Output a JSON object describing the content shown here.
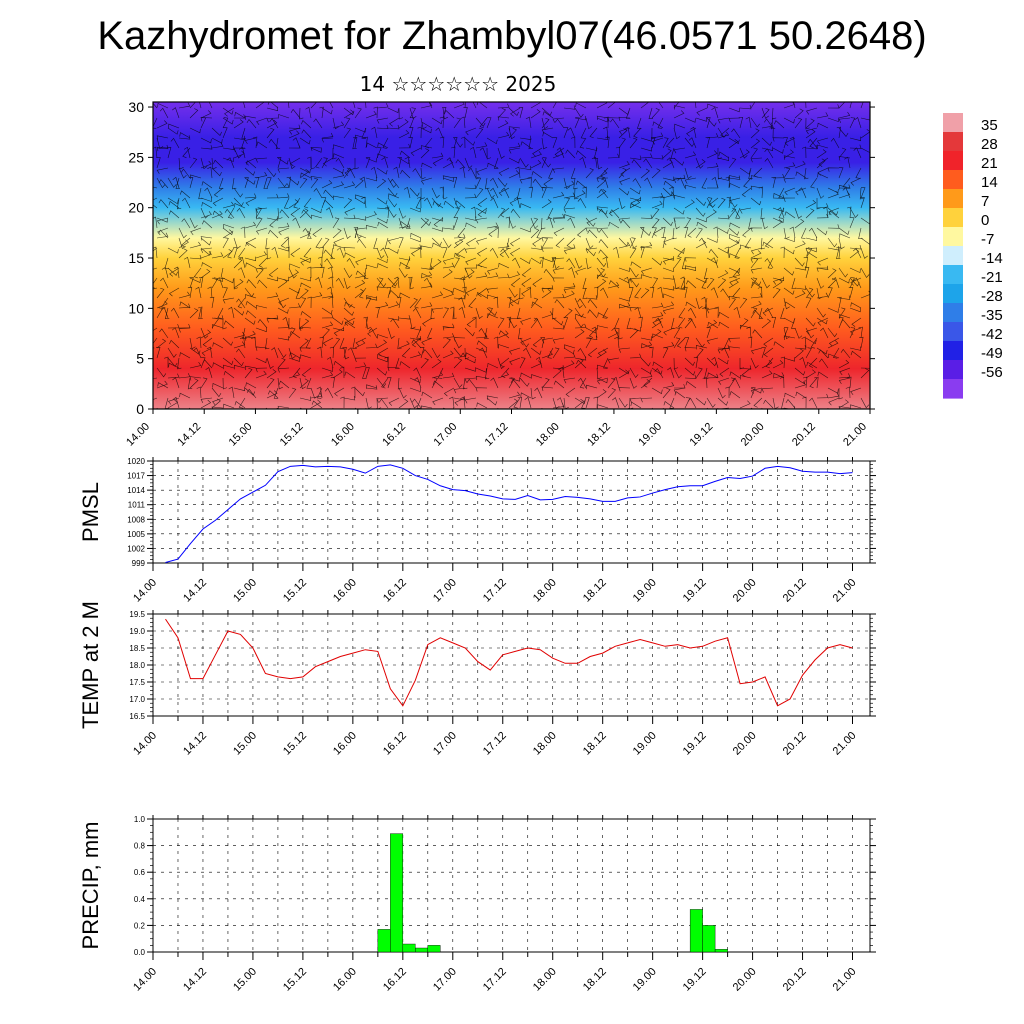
{
  "header": {
    "title": "Kazhydromet for Zhambyl07(46.0571 50.2648)",
    "subtitle": "14 ☆☆☆☆☆☆ 2025"
  },
  "chart_data": [
    {
      "type": "heatmap",
      "panel": "cross-section",
      "x_tick_labels": [
        "14.00",
        "14.12",
        "15.00",
        "15.12",
        "16.00",
        "16.12",
        "17.00",
        "17.12",
        "18.00",
        "18.12",
        "19.00",
        "19.12",
        "20.00",
        "20.12",
        "21.00"
      ],
      "y_tick_labels": [
        "0",
        "5",
        "10",
        "15",
        "20",
        "25",
        "30"
      ],
      "ylim": [
        0,
        30
      ],
      "colorbar_labels": [
        "35",
        "28",
        "21",
        "14",
        "7",
        "0",
        "-7",
        "-14",
        "-21",
        "-28",
        "-35",
        "-42",
        "-49",
        "-56"
      ],
      "colorbar_colors": [
        "#f0a0a8",
        "#e4383a",
        "#f0232a",
        "#ff5c1e",
        "#ff9a1a",
        "#ffd23c",
        "#fff8a0",
        "#cfeefd",
        "#39b9f2",
        "#1da4ea",
        "#2f7ee8",
        "#3a57e8",
        "#2121e6",
        "#5a1ee6",
        "#8a3cf0"
      ],
      "profile": {
        "heights": [
          0,
          4,
          8,
          12,
          15,
          17,
          20,
          22,
          24.5,
          27,
          30.5
        ],
        "temperatures": [
          33,
          22,
          14,
          7,
          0,
          -7,
          -21,
          -35,
          -52,
          -52,
          -60
        ]
      }
    },
    {
      "type": "line",
      "panel": "pmsl",
      "ylabel": "PMSL",
      "color": "#0000ff",
      "x_tick_labels": [
        "14.00",
        "14.12",
        "15.00",
        "15.12",
        "16.00",
        "16.12",
        "17.00",
        "17.12",
        "18.00",
        "18.12",
        "19.00",
        "19.12",
        "20.00",
        "20.12",
        "21.00"
      ],
      "y_tick_labels": [
        "999",
        "1002",
        "1005",
        "1008",
        "1011",
        "1014",
        "1017",
        "1020"
      ],
      "ylim": [
        999,
        1020
      ],
      "x": [
        0,
        3,
        6,
        9,
        12,
        15,
        18,
        21,
        24,
        27,
        30,
        33,
        36,
        39,
        42,
        45,
        48,
        51,
        54,
        57,
        60,
        63,
        66,
        69,
        72,
        75,
        78,
        81,
        84,
        87,
        90,
        93,
        96,
        99,
        102,
        105,
        108,
        111,
        114,
        117,
        120,
        123,
        126,
        129,
        132,
        135,
        138,
        141,
        144,
        147,
        150,
        153,
        156,
        159,
        162,
        165
      ],
      "values": [
        999.1,
        999.8,
        1003,
        1006,
        1007.8,
        1010,
        1012.2,
        1013.6,
        1015,
        1017.8,
        1018.9,
        1019.1,
        1018.8,
        1018.9,
        1018.8,
        1018.3,
        1017.5,
        1018.9,
        1019.2,
        1018.5,
        1017,
        1016.2,
        1014.9,
        1014.1,
        1013.9,
        1013.2,
        1012.8,
        1012.2,
        1012.1,
        1012.9,
        1012,
        1012.1,
        1012.7,
        1012.5,
        1012.2,
        1011.7,
        1011.7,
        1012.4,
        1012.6,
        1013.4,
        1014.1,
        1014.7,
        1014.9,
        1014.9,
        1015.8,
        1016.6,
        1016.4,
        1016.9,
        1018.5,
        1018.9,
        1018.6,
        1017.9,
        1017.7,
        1017.7,
        1017.4,
        1017.6
      ]
    },
    {
      "type": "line",
      "panel": "temp2m",
      "ylabel": "TEMP at 2 M",
      "color": "#e00000",
      "x_tick_labels": [
        "14.00",
        "14.12",
        "15.00",
        "15.12",
        "16.00",
        "16.12",
        "17.00",
        "17.12",
        "18.00",
        "18.12",
        "19.00",
        "19.12",
        "20.00",
        "20.12",
        "21.00"
      ],
      "y_tick_labels": [
        "16.5",
        "17.0",
        "17.5",
        "18.0",
        "18.5",
        "19.0",
        "19.5"
      ],
      "ylim": [
        16.5,
        19.5
      ],
      "x": [
        0,
        3,
        6,
        9,
        12,
        15,
        18,
        21,
        24,
        27,
        30,
        33,
        36,
        39,
        42,
        45,
        48,
        51,
        54,
        57,
        60,
        63,
        66,
        69,
        72,
        75,
        78,
        81,
        84,
        87,
        90,
        93,
        96,
        99,
        102,
        105,
        108,
        111,
        114,
        117,
        120,
        123,
        126,
        129,
        132,
        135,
        138,
        141,
        144,
        147,
        150,
        153,
        156,
        159,
        162,
        165
      ],
      "values": [
        19.35,
        18.8,
        17.6,
        17.6,
        18.3,
        19,
        18.9,
        18.5,
        17.75,
        17.65,
        17.6,
        17.65,
        17.95,
        18.1,
        18.25,
        18.35,
        18.45,
        18.4,
        17.3,
        16.8,
        17.55,
        18.6,
        18.8,
        18.65,
        18.5,
        18.1,
        17.85,
        18.3,
        18.4,
        18.5,
        18.45,
        18.2,
        18.05,
        18.05,
        18.25,
        18.35,
        18.55,
        18.65,
        18.75,
        18.65,
        18.55,
        18.6,
        18.5,
        18.55,
        18.7,
        18.8,
        17.45,
        17.5,
        17.65,
        16.8,
        17,
        17.7,
        18.15,
        18.5,
        18.6,
        18.5
      ],
      "tail_values": [
        18.45
      ]
    },
    {
      "type": "bar",
      "panel": "precip",
      "ylabel": "PRECIP, mm",
      "color": "#00ff00",
      "x_tick_labels": [
        "14.00",
        "14.12",
        "15.00",
        "15.12",
        "16.00",
        "16.12",
        "17.00",
        "17.12",
        "18.00",
        "18.12",
        "19.00",
        "19.12",
        "20.00",
        "20.12",
        "21.00"
      ],
      "y_tick_labels": [
        "0.0",
        "0.2",
        "0.4",
        "0.6",
        "0.8",
        "1.0"
      ],
      "ylim": [
        0,
        1.0
      ],
      "x": [
        48,
        51,
        54,
        57,
        60,
        123,
        126,
        129
      ],
      "values": [
        0.17,
        0.89,
        0.06,
        0.03,
        0.05,
        0.32,
        0.2,
        0.02
      ]
    }
  ]
}
